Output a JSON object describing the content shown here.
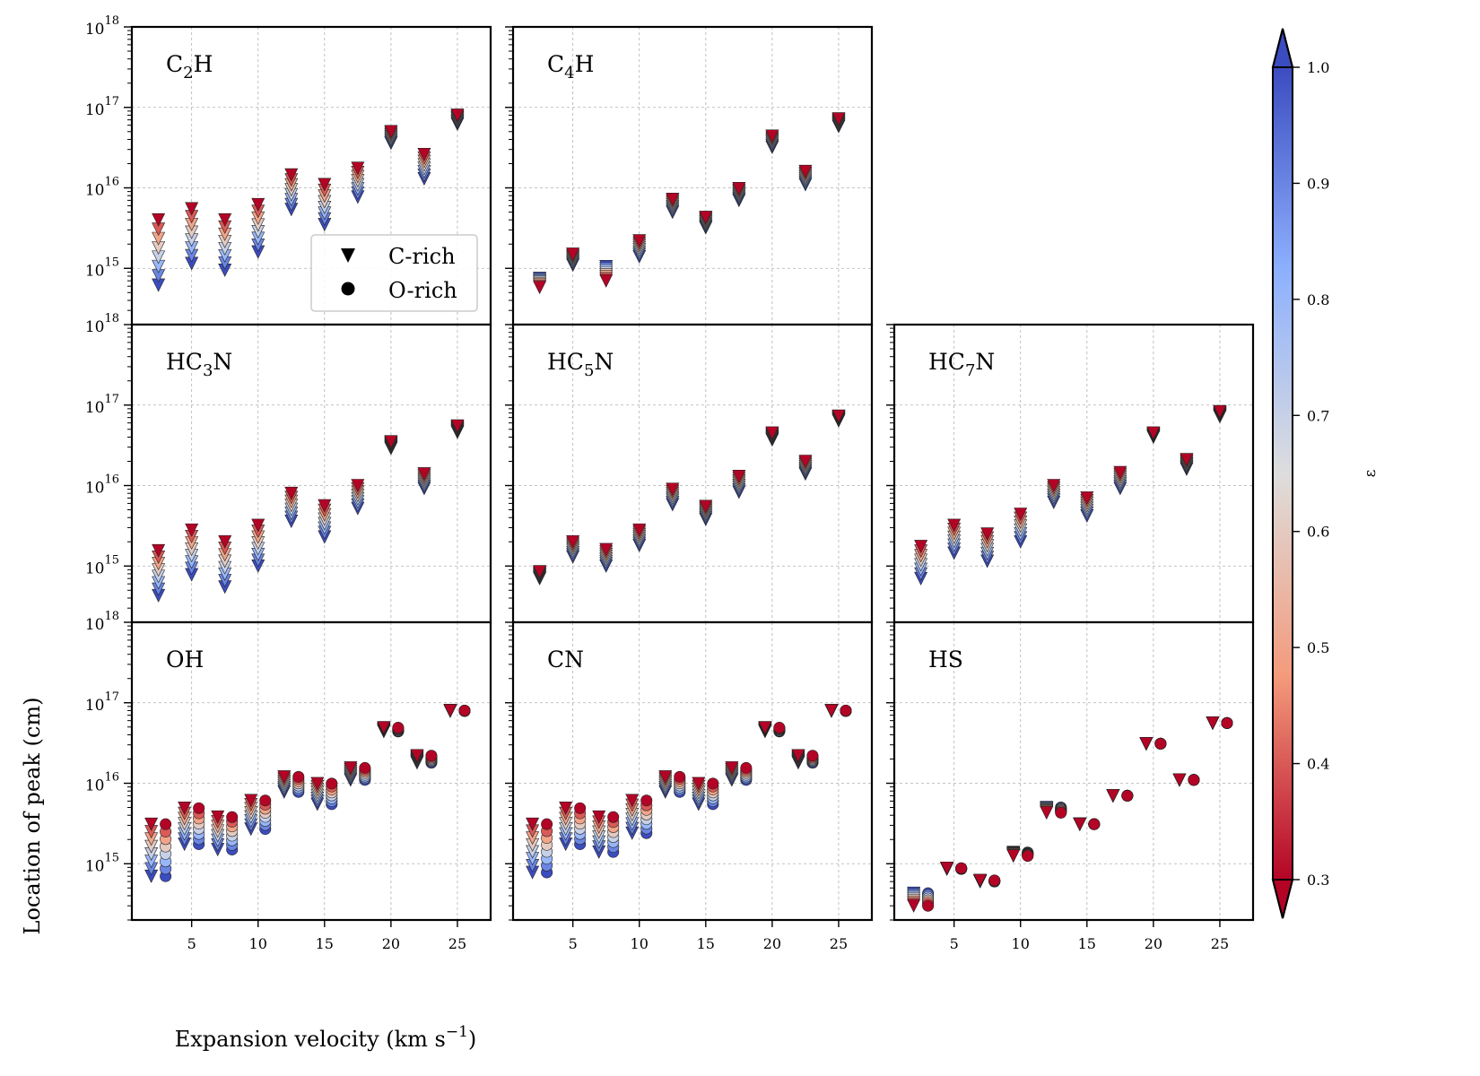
{
  "chart_data": {
    "type": "scatter",
    "yscale": "log",
    "ylim": [
      200000000000000.0,
      1e+18
    ],
    "xlim": [
      0.5,
      27.5
    ],
    "xlabel": "Expansion velocity (km s",
    "xlabel_sup": "−1",
    "xlabel_close": ")",
    "ylabel": "Location of peak (cm)",
    "xticks": [
      "5",
      "10",
      "15",
      "20",
      "25"
    ],
    "yticks": [
      {
        "base": "10",
        "exp": "18"
      },
      {
        "base": "10",
        "exp": "17"
      },
      {
        "base": "10",
        "exp": "16"
      },
      {
        "base": "10",
        "exp": "15"
      }
    ],
    "legend": {
      "location": "lower-right of first panel",
      "entries": [
        {
          "label": "C-rich",
          "marker": "triangle-down"
        },
        {
          "label": "O-rich",
          "marker": "circle"
        }
      ]
    },
    "colorbar": {
      "label": "ε",
      "cmap": "coolwarm",
      "range": [
        0.3,
        1.0
      ],
      "ticks": [
        "0.3",
        "0.4",
        "0.5",
        "0.6",
        "0.7",
        "0.8",
        "0.9",
        "1.0"
      ]
    },
    "eps_levels": [
      0.3,
      0.4,
      0.5,
      0.6,
      0.7,
      0.8,
      0.9,
      1.0
    ],
    "models": [
      {
        "v": 2.5,
        "min": 620000000000000.0
      },
      {
        "v": 5.0,
        "min": 1150000000000000.0
      },
      {
        "v": 7.5,
        "min": 950000000000000.0
      },
      {
        "v": 10.0,
        "min": 1600000000000000.0
      },
      {
        "v": 12.5,
        "min": 5400000000000000.0
      },
      {
        "v": 15.0,
        "min": 3500000000000000.0
      },
      {
        "v": 17.5,
        "min": 7700000000000000.0
      },
      {
        "v": 20.0,
        "min": 3.6e+16
      },
      {
        "v": 22.5,
        "min": 1.3e+16
      },
      {
        "v": 25.0,
        "min": 6.2e+16
      }
    ],
    "panels": [
      {
        "row": 0,
        "col": 0,
        "label": "C",
        "sub": "2",
        "label_end": "H",
        "has_o": false,
        "points": [
          {
            "v": 2.5,
            "max": 4000000000000000.0,
            "min": 620000000000000.0
          },
          {
            "v": 5.0,
            "max": 5500000000000000.0,
            "min": 1150000000000000.0
          },
          {
            "v": 7.5,
            "max": 4000000000000000.0,
            "min": 950000000000000.0
          },
          {
            "v": 10.0,
            "max": 6200000000000000.0,
            "min": 1600000000000000.0
          },
          {
            "v": 12.5,
            "max": 1.45e+16,
            "min": 5400000000000000.0
          },
          {
            "v": 15.0,
            "max": 1.1e+16,
            "min": 3500000000000000.0
          },
          {
            "v": 17.5,
            "max": 1.75e+16,
            "min": 7700000000000000.0
          },
          {
            "v": 20.0,
            "max": 5e+16,
            "min": 3.6e+16
          },
          {
            "v": 22.5,
            "max": 2.6e+16,
            "min": 1.3e+16
          },
          {
            "v": 25.0,
            "max": 8e+16,
            "min": 6.2e+16
          }
        ]
      },
      {
        "row": 0,
        "col": 1,
        "label": "C",
        "sub": "4",
        "label_end": "H",
        "has_o": false,
        "points": [
          {
            "v": 2.5,
            "max": 750000000000000.0,
            "min": 580000000000000.0,
            "reversed": true
          },
          {
            "v": 5.0,
            "max": 1500000000000000.0,
            "min": 1100000000000000.0
          },
          {
            "v": 7.5,
            "max": 1050000000000000.0,
            "min": 700000000000000.0,
            "reversed": true
          },
          {
            "v": 10.0,
            "max": 2200000000000000.0,
            "min": 1400000000000000.0
          },
          {
            "v": 12.5,
            "max": 7200000000000000.0,
            "min": 5000000000000000.0
          },
          {
            "v": 15.0,
            "max": 4300000000000000.0,
            "min": 3200000000000000.0
          },
          {
            "v": 17.5,
            "max": 9800000000000000.0,
            "min": 7000000000000000.0
          },
          {
            "v": 20.0,
            "max": 4.4e+16,
            "min": 3.2e+16
          },
          {
            "v": 22.5,
            "max": 1.6e+16,
            "min": 1.1e+16
          },
          {
            "v": 25.0,
            "max": 7.2e+16,
            "min": 5.8e+16
          }
        ]
      },
      {
        "row": 1,
        "col": 0,
        "label": "HC",
        "sub": "3",
        "label_end": "N",
        "has_o": false,
        "points": [
          {
            "v": 2.5,
            "max": 1550000000000000.0,
            "min": 430000000000000.0
          },
          {
            "v": 5.0,
            "max": 2800000000000000.0,
            "min": 780000000000000.0
          },
          {
            "v": 7.5,
            "max": 2000000000000000.0,
            "min": 550000000000000.0
          },
          {
            "v": 10.0,
            "max": 3200000000000000.0,
            "min": 1000000000000000.0
          },
          {
            "v": 12.5,
            "max": 8000000000000000.0,
            "min": 3600000000000000.0
          },
          {
            "v": 15.0,
            "max": 5600000000000000.0,
            "min": 2300000000000000.0
          },
          {
            "v": 17.5,
            "max": 1e+16,
            "min": 5200000000000000.0
          },
          {
            "v": 20.0,
            "max": 3.5e+16,
            "min": 2.9e+16
          },
          {
            "v": 22.5,
            "max": 1.4e+16,
            "min": 9200000000000000.0
          },
          {
            "v": 25.0,
            "max": 5.5e+16,
            "min": 4.6e+16
          }
        ]
      },
      {
        "row": 1,
        "col": 1,
        "label": "HC",
        "sub": "5",
        "label_end": "N",
        "has_o": false,
        "points": [
          {
            "v": 2.5,
            "max": 850000000000000.0,
            "min": 700000000000000.0
          },
          {
            "v": 5.0,
            "max": 2000000000000000.0,
            "min": 1300000000000000.0
          },
          {
            "v": 7.5,
            "max": 1600000000000000.0,
            "min": 1000000000000000.0
          },
          {
            "v": 10.0,
            "max": 2800000000000000.0,
            "min": 1800000000000000.0
          },
          {
            "v": 12.5,
            "max": 9000000000000000.0,
            "min": 5800000000000000.0
          },
          {
            "v": 15.0,
            "max": 5500000000000000.0,
            "min": 3800000000000000.0
          },
          {
            "v": 17.5,
            "max": 1.3e+16,
            "min": 8300000000000000.0
          },
          {
            "v": 20.0,
            "max": 4.5e+16,
            "min": 3.7e+16
          },
          {
            "v": 22.5,
            "max": 2e+16,
            "min": 1.4e+16
          },
          {
            "v": 25.0,
            "max": 7.3e+16,
            "min": 6.4e+16
          }
        ]
      },
      {
        "row": 1,
        "col": 2,
        "label": "HC",
        "sub": "7",
        "label_end": "N",
        "has_o": false,
        "points": [
          {
            "v": 2.5,
            "max": 1750000000000000.0,
            "min": 700000000000000.0
          },
          {
            "v": 5.0,
            "max": 3200000000000000.0,
            "min": 1450000000000000.0
          },
          {
            "v": 7.5,
            "max": 2500000000000000.0,
            "min": 1150000000000000.0
          },
          {
            "v": 10.0,
            "max": 4400000000000000.0,
            "min": 2000000000000000.0
          },
          {
            "v": 12.5,
            "max": 1e+16,
            "min": 6200000000000000.0
          },
          {
            "v": 15.0,
            "max": 7000000000000000.0,
            "min": 4200000000000000.0
          },
          {
            "v": 17.5,
            "max": 1.45e+16,
            "min": 9200000000000000.0
          },
          {
            "v": 20.0,
            "max": 4.5e+16,
            "min": 4e+16
          },
          {
            "v": 22.5,
            "max": 2.1e+16,
            "min": 1.6e+16
          },
          {
            "v": 25.0,
            "max": 8.3e+16,
            "min": 7.2e+16
          }
        ]
      },
      {
        "row": 2,
        "col": 0,
        "label": "OH",
        "sub": "",
        "label_end": "",
        "has_o": true,
        "points": [
          {
            "v": 2.5,
            "max": 3100000000000000.0,
            "min": 700000000000000.0
          },
          {
            "v": 5.0,
            "max": 4900000000000000.0,
            "min": 1750000000000000.0
          },
          {
            "v": 7.5,
            "max": 3800000000000000.0,
            "min": 1500000000000000.0
          },
          {
            "v": 10.0,
            "max": 6100000000000000.0,
            "min": 2700000000000000.0
          },
          {
            "v": 12.5,
            "max": 1.2e+16,
            "min": 7800000000000000.0
          },
          {
            "v": 15.0,
            "max": 9900000000000000.0,
            "min": 5500000000000000.0
          },
          {
            "v": 17.5,
            "max": 1.55e+16,
            "min": 1.1e+16
          },
          {
            "v": 20.0,
            "max": 4.9e+16,
            "min": 4.4e+16
          },
          {
            "v": 22.5,
            "max": 2.2e+16,
            "min": 1.8e+16
          },
          {
            "v": 25.0,
            "max": 8e+16,
            "min": 7.9e+16
          }
        ]
      },
      {
        "row": 2,
        "col": 1,
        "label": "CN",
        "sub": "",
        "label_end": "",
        "has_o": true,
        "points": [
          {
            "v": 2.5,
            "max": 3100000000000000.0,
            "min": 780000000000000.0
          },
          {
            "v": 5.0,
            "max": 4900000000000000.0,
            "min": 1750000000000000.0
          },
          {
            "v": 7.5,
            "max": 3800000000000000.0,
            "min": 1400000000000000.0
          },
          {
            "v": 10.0,
            "max": 6100000000000000.0,
            "min": 2400000000000000.0
          },
          {
            "v": 12.5,
            "max": 1.2e+16,
            "min": 7800000000000000.0
          },
          {
            "v": 15.0,
            "max": 9900000000000000.0,
            "min": 5500000000000000.0
          },
          {
            "v": 17.5,
            "max": 1.55e+16,
            "min": 1.1e+16
          },
          {
            "v": 20.0,
            "max": 4.9e+16,
            "min": 4.4e+16
          },
          {
            "v": 22.5,
            "max": 2.2e+16,
            "min": 1.8e+16
          },
          {
            "v": 25.0,
            "max": 8e+16,
            "min": 7.9e+16
          }
        ]
      },
      {
        "row": 2,
        "col": 2,
        "label": "HS",
        "sub": "",
        "label_end": "",
        "has_o": true,
        "points": [
          {
            "v": 2.5,
            "max": 430000000000000.0,
            "min": 300000000000000.0,
            "reversed": true
          },
          {
            "v": 5.0,
            "max": 880000000000000.0,
            "min": 860000000000000.0
          },
          {
            "v": 7.5,
            "max": 620000000000000.0,
            "min": 600000000000000.0
          },
          {
            "v": 10.0,
            "max": 1380000000000000.0,
            "min": 1250000000000000.0,
            "reversed": true
          },
          {
            "v": 12.5,
            "max": 5000000000000000.0,
            "min": 4300000000000000.0,
            "reversed": true
          },
          {
            "v": 15.0,
            "max": 3100000000000000.0,
            "min": 3100000000000000.0
          },
          {
            "v": 17.5,
            "max": 7000000000000000.0,
            "min": 7000000000000000.0
          },
          {
            "v": 20.0,
            "max": 3.1e+16,
            "min": 3.1e+16
          },
          {
            "v": 22.5,
            "max": 1.1e+16,
            "min": 1.1e+16
          },
          {
            "v": 25.0,
            "max": 5.6e+16,
            "min": 5.6e+16
          }
        ]
      }
    ]
  }
}
